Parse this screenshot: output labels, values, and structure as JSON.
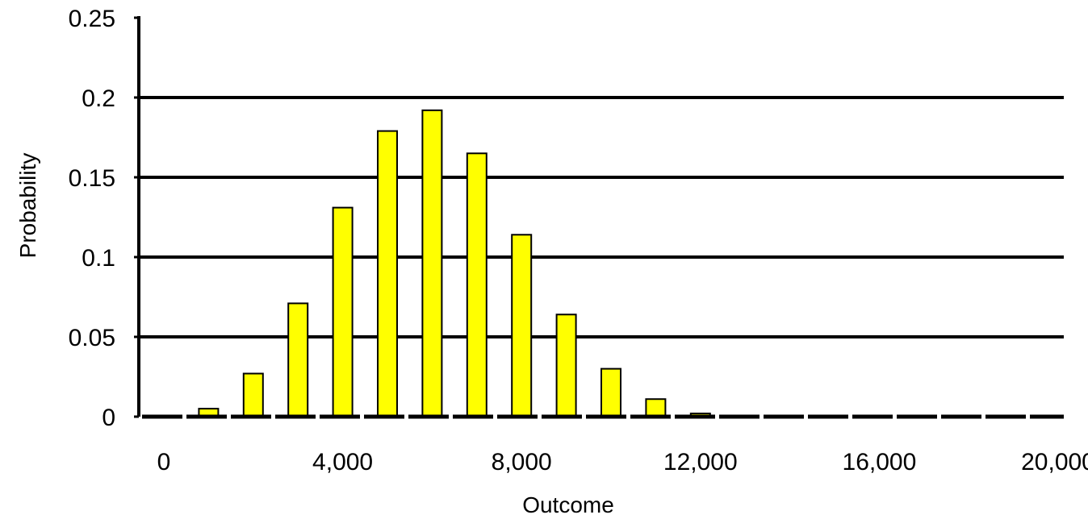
{
  "chart_data": {
    "type": "bar",
    "title": "",
    "xlabel": "Outcome",
    "ylabel": "Probability",
    "x": [
      1000,
      2000,
      3000,
      4000,
      5000,
      6000,
      7000,
      8000,
      9000,
      10000,
      11000,
      12000,
      13000,
      14000,
      15000,
      16000,
      17000,
      18000,
      19000,
      20000
    ],
    "values": [
      0.005,
      0.027,
      0.071,
      0.131,
      0.179,
      0.192,
      0.165,
      0.114,
      0.064,
      0.03,
      0.011,
      0.002,
      0,
      0,
      0,
      0,
      0,
      0,
      0,
      0
    ],
    "xlim": [
      0,
      20000
    ],
    "ylim": [
      0,
      0.25
    ],
    "xticks": [
      0,
      4000,
      8000,
      12000,
      16000,
      20000
    ],
    "xtick_labels": [
      "0",
      "4,000",
      "8,000",
      "12,000",
      "16,000",
      "20,000"
    ],
    "yticks": [
      0,
      0.05,
      0.1,
      0.15,
      0.2,
      0.25
    ],
    "ytick_labels": [
      "0",
      "0.05",
      "0.1",
      "0.15",
      "0.2",
      "0.25"
    ],
    "gridlines": [
      0.05,
      0.1,
      0.15,
      0.2
    ],
    "grid": true,
    "legend": false,
    "colors": {
      "bar_fill": "#ffff00",
      "bar_stroke": "#000000",
      "grid": "#000000",
      "axis": "#000000"
    }
  }
}
